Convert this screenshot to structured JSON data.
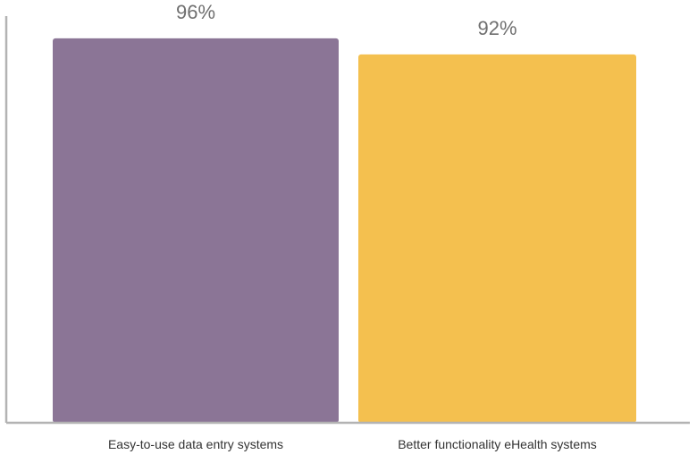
{
  "chart_data": {
    "type": "bar",
    "title": "",
    "xlabel": "",
    "ylabel": "",
    "ylim": [
      0,
      100
    ],
    "categories": [
      "Easy-to-use data entry systems",
      "Better functionality eHealth systems"
    ],
    "values": [
      96,
      92
    ],
    "data_labels": [
      "96%",
      "92%"
    ],
    "colors": [
      "#8b7596",
      "#f4c04f"
    ],
    "axis_color": "#b3b3b3",
    "grid": false,
    "legend": "none"
  }
}
